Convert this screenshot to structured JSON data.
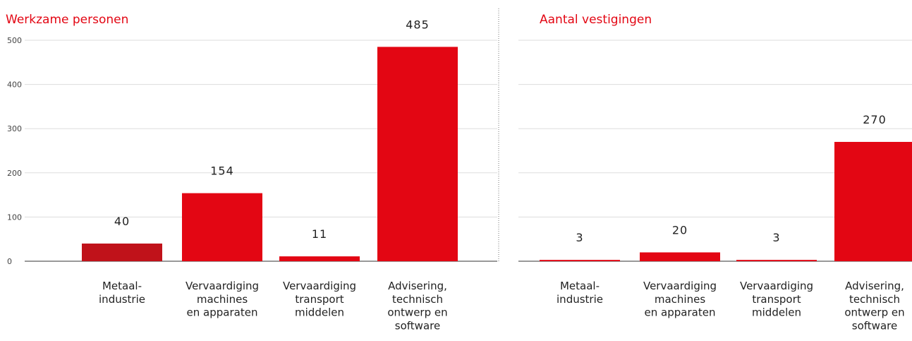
{
  "chart_data": [
    {
      "type": "bar",
      "title": "Werkzame personen",
      "categories": [
        "Metaal-\nindustrie",
        "Vervaardiging\nmachines\nen apparaten",
        "Vervaardiging\ntransport\nmiddelen",
        "Advisering,\ntechnisch\nontwerp en\nsoftware"
      ],
      "values": [
        40,
        154,
        11,
        485
      ],
      "colors": [
        "#c0121a",
        "#e30613",
        "#e30613",
        "#e30613"
      ],
      "ylim": [
        0,
        500
      ],
      "yticks": [
        0,
        100,
        200,
        300,
        400,
        500
      ],
      "grid": true
    },
    {
      "type": "bar",
      "title": "Aantal vestigingen",
      "categories": [
        "Metaal-\nindustrie",
        "Vervaardiging\nmachines\nen apparaten",
        "Vervaardiging\ntransport\nmiddelen",
        "Advisering,\ntechnisch\nontwerp en\nsoftware"
      ],
      "values": [
        3,
        20,
        3,
        270
      ],
      "colors": [
        "#e30613",
        "#e30613",
        "#e30613",
        "#e30613"
      ],
      "ylim": [
        0,
        500
      ],
      "grid": true
    }
  ]
}
